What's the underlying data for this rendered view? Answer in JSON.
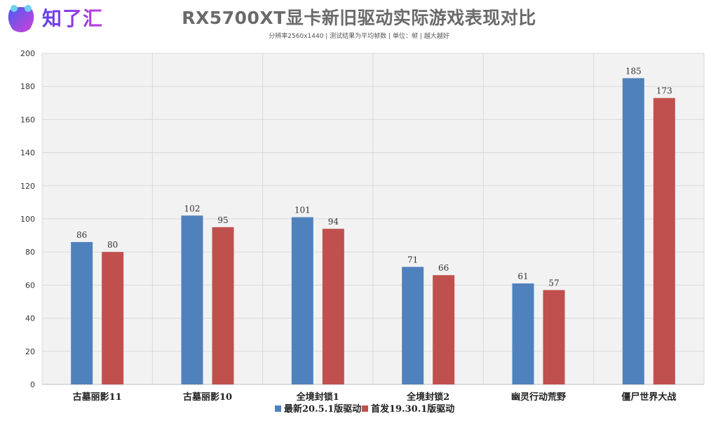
{
  "header": {
    "logo_text": "知了汇",
    "title": "RX5700XT显卡新旧驱动实际游戏表现对比",
    "subtitle": "分辨率2560x1440 | 测试结果为平均帧数 | 单位：帧 | 越大越好"
  },
  "colors": {
    "series_blue": "#4f81bd",
    "series_red": "#c0504d",
    "plot_bg": "#f2f2f2",
    "grid": "#d9d9d9",
    "logo_accent": "#7b3fe4"
  },
  "chart_data": {
    "type": "bar",
    "title": "RX5700XT显卡新旧驱动实际游戏表现对比",
    "subtitle": "分辨率2560x1440 | 测试结果为平均帧数 | 单位：帧 | 越大越好",
    "categories": [
      "古墓丽影11",
      "古墓丽影10",
      "全境封锁1",
      "全境封锁2",
      "幽灵行动荒野",
      "僵尸世界大战"
    ],
    "series": [
      {
        "name": "最新20.5.1版驱动",
        "values": [
          86,
          102,
          101,
          71,
          61,
          185
        ]
      },
      {
        "name": "首发19.30.1版驱动",
        "values": [
          80,
          95,
          94,
          66,
          57,
          173
        ]
      }
    ],
    "xlabel": "",
    "ylabel": "",
    "ylim": [
      0,
      200
    ],
    "yticks": [
      0,
      20,
      40,
      60,
      80,
      100,
      120,
      140,
      160,
      180,
      200
    ],
    "grid": true,
    "legend_position": "bottom"
  }
}
